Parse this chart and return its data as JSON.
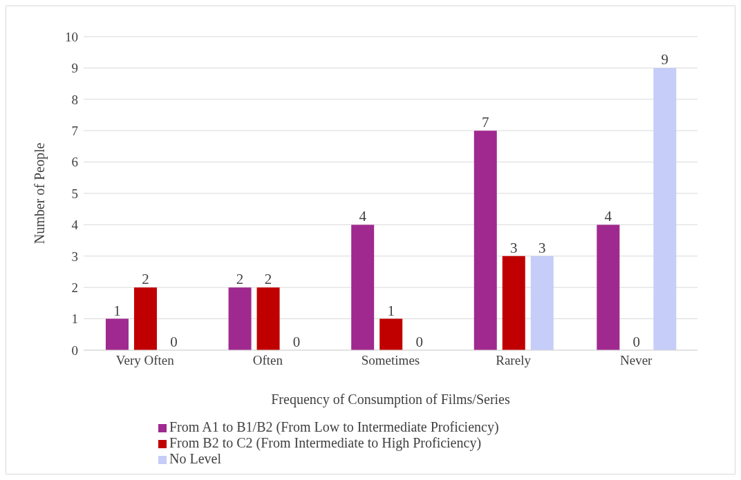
{
  "chart_data": {
    "type": "bar",
    "xlabel": "Frequency of Consumption of Films/Series",
    "ylabel": "Number of People",
    "categories": [
      "Very Often",
      "Often",
      "Sometimes",
      "Rarely",
      "Never"
    ],
    "series": [
      {
        "name": "From A1 to B1/B2 (From Low to Intermediate Proficiency)",
        "color": "#a0298f",
        "values": [
          1,
          2,
          4,
          7,
          4
        ]
      },
      {
        "name": "From B2 to C2 (From Intermediate to High Proficiency)",
        "color": "#c00000",
        "values": [
          2,
          2,
          1,
          3,
          0
        ]
      },
      {
        "name": "No Level",
        "color": "#c5cdf8",
        "values": [
          0,
          0,
          0,
          3,
          9
        ]
      }
    ],
    "ylim": [
      0,
      10
    ],
    "yticks": [
      0,
      1,
      2,
      3,
      4,
      5,
      6,
      7,
      8,
      9,
      10
    ],
    "grid": "y",
    "legend": "bottom",
    "data_labels": true
  }
}
